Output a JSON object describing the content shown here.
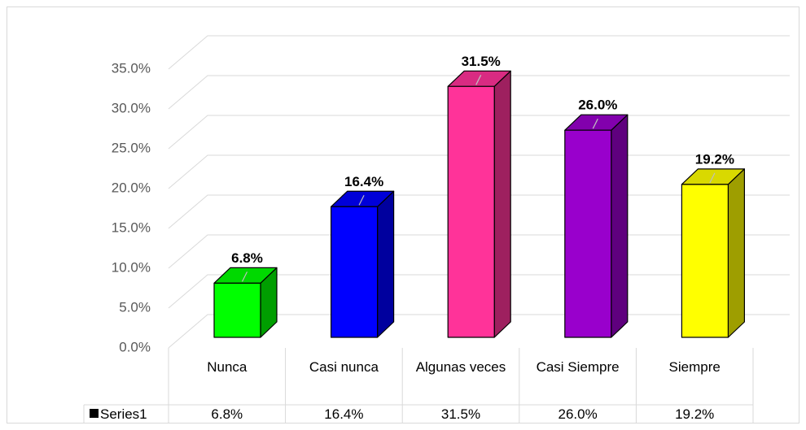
{
  "chart_data": {
    "type": "bar3d",
    "categories": [
      "Nunca",
      "Casi nunca",
      "Algunas veces",
      "Casi Siempre",
      "Siempre"
    ],
    "series": [
      {
        "name": "Series1",
        "colors": [
          "#00ff00",
          "#0000ff",
          "#ff3399",
          "#9900cc",
          "#ffff00"
        ],
        "values": [
          6.8,
          16.4,
          31.5,
          26.0,
          19.2
        ],
        "value_labels": [
          "6.8%",
          "16.4%",
          "31.5%",
          "26.0%",
          "19.2%"
        ]
      }
    ],
    "ylim": [
      0,
      35
    ],
    "yticks": [
      {
        "value": 0,
        "label": "0.0%"
      },
      {
        "value": 5,
        "label": "5.0%"
      },
      {
        "value": 10,
        "label": "10.0%"
      },
      {
        "value": 15,
        "label": "15.0%"
      },
      {
        "value": 20,
        "label": "20.0%"
      },
      {
        "value": 25,
        "label": "25.0%"
      },
      {
        "value": 30,
        "label": "30.0%"
      },
      {
        "value": 35,
        "label": "35.0%"
      }
    ],
    "grid": true,
    "data_table": true
  }
}
